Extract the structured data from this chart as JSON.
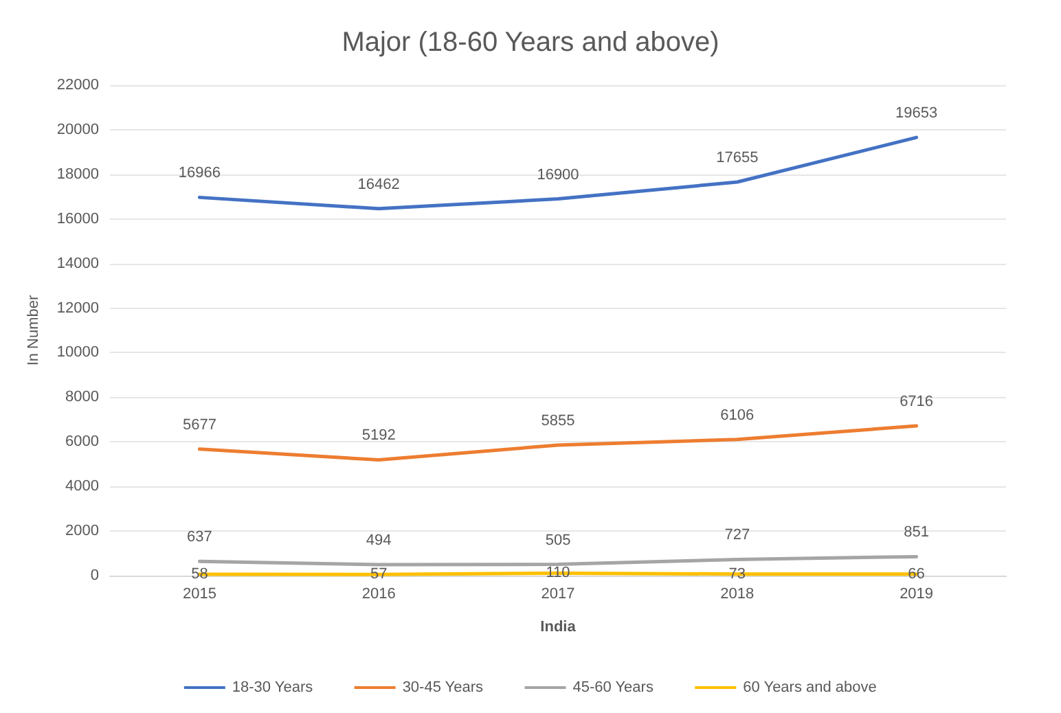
{
  "chart_data": {
    "type": "line",
    "title": "Major (18-60 Years and above)",
    "xlabel": "India",
    "ylabel": "In Number",
    "categories": [
      "2015",
      "2016",
      "2017",
      "2018",
      "2019"
    ],
    "series": [
      {
        "name": "18-30 Years",
        "color": "#4472c4",
        "values": [
          16966,
          16462,
          16900,
          17655,
          19653
        ]
      },
      {
        "name": "30-45 Years",
        "color": "#ed7d31",
        "values": [
          5677,
          5192,
          5855,
          6106,
          6716
        ]
      },
      {
        "name": "45-60 Years",
        "color": "#a5a5a5",
        "values": [
          637,
          494,
          505,
          727,
          851
        ]
      },
      {
        "name": "60 Years and above",
        "color": "#ffc000",
        "values": [
          58,
          57,
          110,
          73,
          66
        ]
      }
    ],
    "ylim": [
      0,
      22000
    ],
    "yticks": [
      0,
      2000,
      4000,
      6000,
      8000,
      10000,
      12000,
      14000,
      16000,
      18000,
      20000,
      22000
    ],
    "grid": "y",
    "legend": "bottom",
    "data_labels": true,
    "marker": "none",
    "line_style": "solid"
  }
}
